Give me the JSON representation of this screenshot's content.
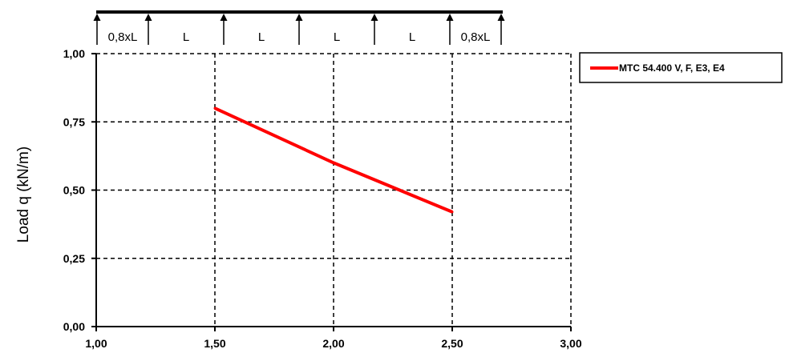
{
  "chart_data": {
    "type": "line",
    "title": "",
    "xlabel": "",
    "ylabel": "Load q (kN/m)",
    "xlim": [
      1.0,
      3.0
    ],
    "ylim": [
      0.0,
      1.0
    ],
    "x_ticks": [
      "1,00",
      "1,50",
      "2,00",
      "2,50",
      "3,00"
    ],
    "y_ticks": [
      "0,00",
      "0,25",
      "0,50",
      "0,75",
      "1,00"
    ],
    "grid": true,
    "legend_position": "right",
    "series": [
      {
        "name": "MTC 54.400 V, F, E3, E4",
        "color": "#ff0000",
        "x": [
          1.5,
          2.0,
          2.5
        ],
        "y": [
          0.8,
          0.6,
          0.42
        ]
      }
    ],
    "span_diagram": {
      "span_labels": [
        "0,8xL",
        "L",
        "L",
        "L",
        "L",
        "0,8xL"
      ]
    }
  }
}
